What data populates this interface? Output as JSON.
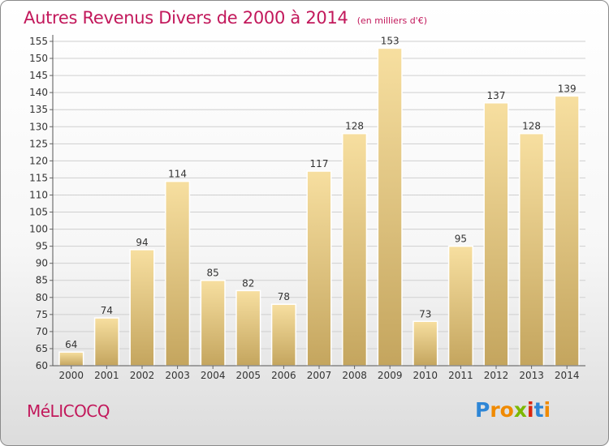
{
  "header": {
    "title": "Autres Revenus Divers de 2000 à 2014",
    "subtitle": "(en milliers d'€)"
  },
  "footer": {
    "commune": "MéLICOCQ",
    "brand": "Proxiti",
    "brand_letters": [
      {
        "ch": "P",
        "color": "#2e86d6"
      },
      {
        "ch": "r",
        "color": "#f08a00"
      },
      {
        "ch": "o",
        "color": "#f08a00"
      },
      {
        "ch": "x",
        "color": "#7cb800"
      },
      {
        "ch": "i",
        "color": "#d9260f"
      },
      {
        "ch": "t",
        "color": "#2e86d6"
      },
      {
        "ch": "i",
        "color": "#f08a00"
      }
    ]
  },
  "colors": {
    "accent": "#c2185b",
    "bar_top": "#f7dfa0",
    "bar_bottom": "#c4a55e",
    "grid": "#cfcfcf"
  },
  "chart_data": {
    "type": "bar",
    "title": "Autres Revenus Divers de 2000 à 2014",
    "subtitle": "(en milliers d'€)",
    "categories": [
      "2000",
      "2001",
      "2002",
      "2003",
      "2004",
      "2005",
      "2006",
      "2007",
      "2008",
      "2009",
      "2010",
      "2011",
      "2012",
      "2013",
      "2014"
    ],
    "values": [
      64,
      74,
      94,
      114,
      85,
      82,
      78,
      117,
      128,
      153,
      73,
      95,
      137,
      128,
      139
    ],
    "ylim": [
      60,
      155
    ],
    "yticks": [
      60,
      65,
      70,
      75,
      80,
      85,
      90,
      95,
      100,
      105,
      110,
      115,
      120,
      125,
      130,
      135,
      140,
      145,
      150,
      155
    ],
    "grid": true,
    "data_labels": true
  }
}
